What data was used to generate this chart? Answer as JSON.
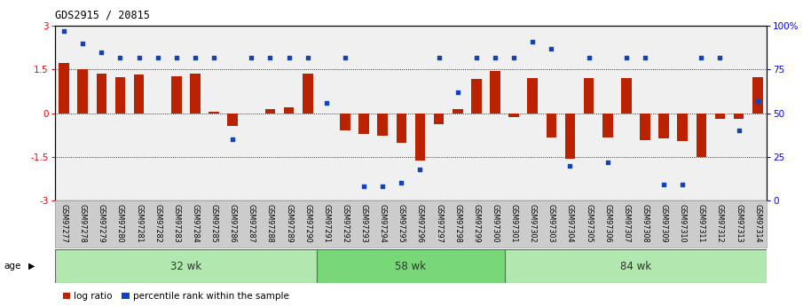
{
  "title": "GDS2915 / 20815",
  "samples": [
    "GSM97277",
    "GSM97278",
    "GSM97279",
    "GSM97280",
    "GSM97281",
    "GSM97282",
    "GSM97283",
    "GSM97284",
    "GSM97285",
    "GSM97286",
    "GSM97287",
    "GSM97288",
    "GSM97289",
    "GSM97290",
    "GSM97291",
    "GSM97292",
    "GSM97293",
    "GSM97294",
    "GSM97295",
    "GSM97296",
    "GSM97297",
    "GSM97298",
    "GSM97299",
    "GSM97300",
    "GSM97301",
    "GSM97302",
    "GSM97303",
    "GSM97304",
    "GSM97305",
    "GSM97306",
    "GSM97307",
    "GSM97308",
    "GSM97309",
    "GSM97310",
    "GSM97311",
    "GSM97312",
    "GSM97313",
    "GSM97314"
  ],
  "log_ratio": [
    1.72,
    1.52,
    1.35,
    1.25,
    1.32,
    0.0,
    1.28,
    1.35,
    0.05,
    -0.45,
    0.0,
    0.15,
    0.2,
    1.35,
    0.0,
    -0.6,
    -0.72,
    -0.78,
    -1.02,
    -1.62,
    -0.38,
    0.15,
    1.18,
    1.45,
    -0.12,
    1.22,
    -0.82,
    -1.58,
    1.22,
    -0.82,
    1.22,
    -0.92,
    -0.88,
    -0.95,
    -1.52,
    -0.18,
    -0.18,
    1.25
  ],
  "percentile": [
    97,
    90,
    85,
    82,
    82,
    82,
    82,
    82,
    82,
    35,
    82,
    82,
    82,
    82,
    56,
    82,
    8,
    8,
    10,
    18,
    82,
    62,
    82,
    82,
    82,
    91,
    87,
    20,
    82,
    22,
    82,
    82,
    9,
    9,
    82,
    82,
    40,
    57
  ],
  "groups": [
    {
      "label": "32 wk",
      "start": 0,
      "end": 14
    },
    {
      "label": "58 wk",
      "start": 14,
      "end": 24
    },
    {
      "label": "84 wk",
      "start": 24,
      "end": 38
    }
  ],
  "group_colors_list": [
    "#b0e8b0",
    "#78d878",
    "#b0e8b0"
  ],
  "bar_color": "#bb2200",
  "dot_color": "#1144bb",
  "ylim": [
    -3,
    3
  ],
  "yticks_left": [
    -3,
    -1.5,
    0,
    1.5,
    3
  ],
  "yticks_right_vals": [
    0,
    25,
    50,
    75,
    100
  ],
  "yticks_right_labels": [
    "0",
    "25",
    "50",
    "75",
    "100%"
  ],
  "hlines": [
    -1.5,
    0.0,
    1.5
  ],
  "plot_bg": "#f0f0f0",
  "xtick_bg": "#cccccc",
  "fig_bg": "white"
}
